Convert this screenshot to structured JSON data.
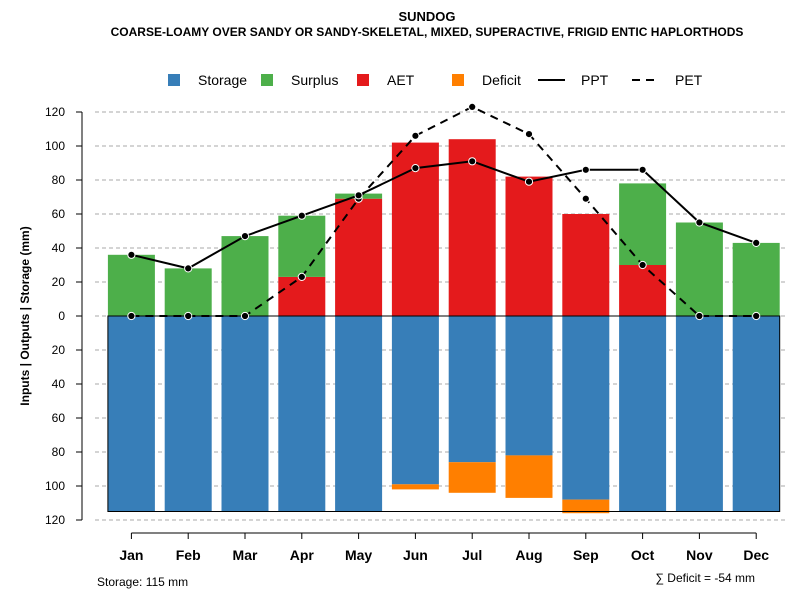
{
  "chart_data": {
    "type": "bar",
    "title": "SUNDOG",
    "subtitle": "COARSE-LOAMY OVER SANDY OR SANDY-SKELETAL, MIXED, SUPERACTIVE, FRIGID ENTIC HAPLORTHODS",
    "ylabel": "Inputs | Outputs | Storage    (mm)",
    "ylim": [
      -120,
      130
    ],
    "yticks": [
      120,
      100,
      80,
      60,
      40,
      20,
      0,
      20,
      40,
      60,
      80,
      100,
      120
    ],
    "categories": [
      "Jan",
      "Feb",
      "Mar",
      "Apr",
      "May",
      "Jun",
      "Jul",
      "Aug",
      "Sep",
      "Oct",
      "Nov",
      "Dec"
    ],
    "legend": [
      {
        "label": "Storage",
        "kind": "box",
        "color": "#377EB8"
      },
      {
        "label": "Surplus",
        "kind": "box",
        "color": "#4DAF4A"
      },
      {
        "label": "AET",
        "kind": "box",
        "color": "#E41A1C"
      },
      {
        "label": "Deficit",
        "kind": "box",
        "color": "#FF7F00"
      },
      {
        "label": "PPT",
        "kind": "solid",
        "color": "#000000"
      },
      {
        "label": "PET",
        "kind": "dashed",
        "color": "#000000"
      }
    ],
    "series": [
      {
        "name": "AET",
        "color": "#E41A1C",
        "values": [
          0,
          0,
          0,
          23,
          69,
          102,
          104,
          82,
          60,
          30,
          0,
          0
        ]
      },
      {
        "name": "Surplus",
        "color": "#4DAF4A",
        "values": [
          36,
          28,
          47,
          36,
          3,
          0,
          0,
          0,
          0,
          48,
          55,
          43
        ]
      },
      {
        "name": "Storage",
        "color": "#377EB8",
        "values": [
          115,
          115,
          115,
          115,
          115,
          99,
          86,
          82,
          108,
          115,
          115,
          115
        ]
      },
      {
        "name": "Deficit",
        "color": "#FF7F00",
        "values": [
          0,
          0,
          0,
          0,
          0,
          3,
          18,
          25,
          8,
          0,
          0,
          0
        ]
      },
      {
        "name": "PPT",
        "color": "#000000",
        "values": [
          36,
          28,
          47,
          59,
          71,
          87,
          91,
          79,
          86,
          86,
          55,
          43
        ]
      },
      {
        "name": "PET",
        "color": "#000000",
        "values": [
          0,
          0,
          0,
          23,
          69,
          106,
          123,
          107,
          69,
          30,
          0,
          0
        ]
      }
    ],
    "storage_capacity": 115,
    "footer_left": "Storage: 115 mm",
    "footer_right": "∑ Deficit = -54 mm",
    "grid": true
  }
}
